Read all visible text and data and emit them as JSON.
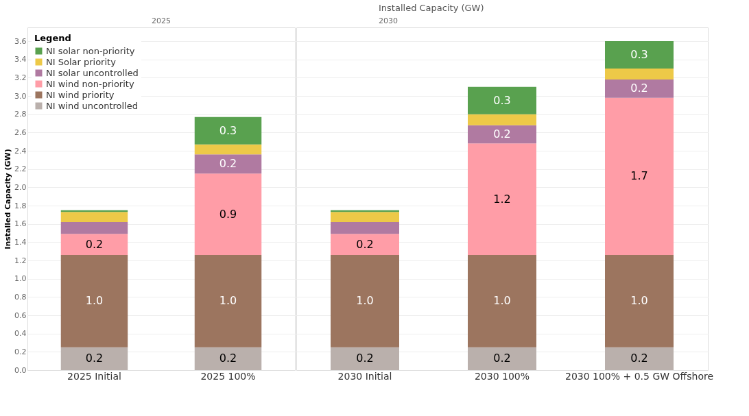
{
  "chart_data": [
    {
      "type": "bar",
      "stacked": true,
      "subtitle": "2025",
      "ylabel": "Installed Capacity (GW)",
      "legend_title": "Legend",
      "legend": "top left",
      "grid": "y",
      "categories": [
        "2025 Initial",
        "2025 100%"
      ],
      "ylim": [
        0,
        3.75
      ],
      "yticks": [
        {
          "value": 0,
          "label": "0.0"
        },
        0.2,
        0.4,
        0.6,
        0.8,
        {
          "value": 1,
          "label": "1.0"
        },
        1.2,
        1.4,
        1.6,
        1.8,
        {
          "value": 2,
          "label": "2.0"
        },
        2.2,
        2.4,
        2.6,
        2.8,
        {
          "value": 3,
          "label": "3.0"
        },
        3.2,
        3.4,
        3.6
      ],
      "series": [
        {
          "name": "NI wind uncontrolled",
          "color": "#bab0ac",
          "values": [
            0.25,
            0.25
          ],
          "value_labels": [
            "0.2",
            "0.2"
          ]
        },
        {
          "name": "NI wind priority",
          "color": "#9c755f",
          "values": [
            1.01,
            1.01
          ],
          "value_labels": [
            "1.0",
            "1.0"
          ]
        },
        {
          "name": "NI wind non-priority",
          "color": "#ff9da7",
          "values": [
            0.23,
            0.89
          ],
          "value_labels": [
            "0.2",
            "0.9"
          ]
        },
        {
          "name": "NI solar uncontrolled",
          "color": "#b07aa1",
          "values": [
            0.13,
            0.21
          ],
          "value_labels": [
            null,
            "0.2"
          ]
        },
        {
          "name": "NI Solar priority",
          "color": "#edc948",
          "values": [
            0.11,
            0.11
          ],
          "value_labels": [
            null,
            null
          ]
        },
        {
          "name": "NI solar non-priority",
          "color": "#59a14f",
          "values": [
            0.02,
            0.3
          ],
          "value_labels": [
            null,
            "0.3"
          ]
        }
      ]
    },
    {
      "type": "bar",
      "stacked": true,
      "title": "Installed Capacity (GW)",
      "subtitle": "2030",
      "grid": "y",
      "tick_labels": "x",
      "categories": [
        "2030 Initial",
        "2030 100%",
        "2030 100% + 0.5 GW Offshore"
      ],
      "ylim": [
        0,
        3.75
      ],
      "yticks": [
        0,
        0.2,
        0.4,
        0.6,
        0.8,
        1,
        1.2,
        1.4,
        1.6,
        1.8,
        2,
        2.2,
        2.4,
        2.6,
        2.8,
        3,
        3.2,
        3.4,
        3.6
      ],
      "series": [
        {
          "color": "#bab0ac",
          "values": [
            0.25,
            0.25,
            0.25
          ],
          "value_labels": [
            "0.2",
            "0.2",
            "0.2"
          ]
        },
        {
          "color": "#9c755f",
          "values": [
            1.01,
            1.01,
            1.01
          ],
          "value_labels": [
            "1.0",
            "1.0",
            "1.0"
          ]
        },
        {
          "color": "#ff9da7",
          "values": [
            0.23,
            1.22,
            1.72
          ],
          "value_labels": [
            "0.2",
            "1.2",
            "1.7"
          ]
        },
        {
          "color": "#b07aa1",
          "values": [
            0.13,
            0.2,
            0.2
          ],
          "value_labels": [
            null,
            "0.2",
            "0.2"
          ]
        },
        {
          "color": "#edc948",
          "values": [
            0.11,
            0.12,
            0.12
          ],
          "value_labels": [
            null,
            null,
            null
          ]
        },
        {
          "color": "#59a14f",
          "values": [
            0.02,
            0.3,
            0.3
          ],
          "value_labels": [
            null,
            "0.3",
            "0.3"
          ]
        }
      ]
    }
  ]
}
